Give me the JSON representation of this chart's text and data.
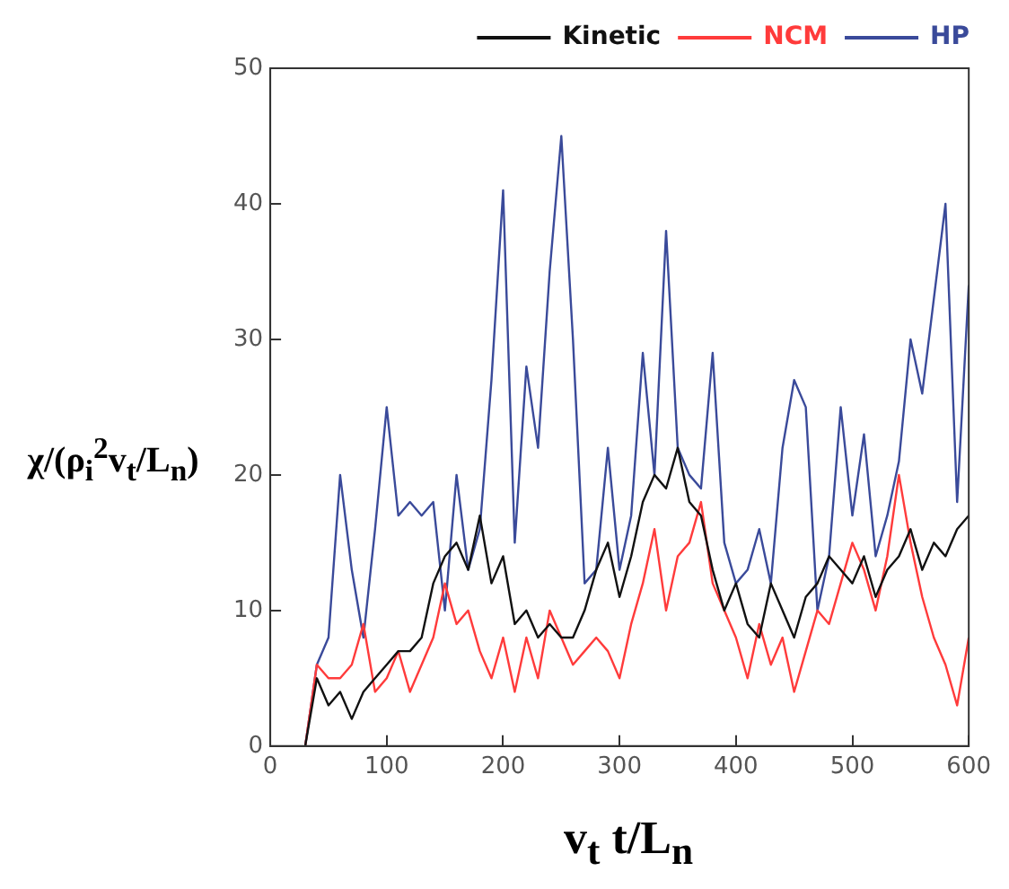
{
  "chart_data": {
    "type": "line",
    "xlabel": "v$_{t}$ t/L$_{n}$",
    "ylabel": "χ/(ρ$_{i}$$^{2}$v$_{t}$/L$_{n}$)",
    "x": [
      30,
      40,
      50,
      60,
      70,
      80,
      90,
      100,
      110,
      120,
      130,
      140,
      150,
      160,
      170,
      180,
      190,
      200,
      210,
      220,
      230,
      240,
      250,
      260,
      270,
      280,
      290,
      300,
      310,
      320,
      330,
      340,
      350,
      360,
      370,
      380,
      390,
      400,
      410,
      420,
      430,
      440,
      450,
      460,
      470,
      480,
      490,
      500,
      510,
      520,
      530,
      540,
      550,
      560,
      570,
      580,
      590,
      600
    ],
    "series": [
      {
        "name": "Kinetic",
        "color": "#111111",
        "values": [
          0,
          5,
          3,
          4,
          2,
          4,
          5,
          6,
          7,
          7,
          8,
          12,
          14,
          15,
          13,
          17,
          12,
          14,
          9,
          10,
          8,
          9,
          8,
          8,
          10,
          13,
          15,
          11,
          14,
          18,
          20,
          19,
          22,
          18,
          17,
          13,
          10,
          12,
          9,
          8,
          12,
          10,
          8,
          11,
          12,
          14,
          13,
          12,
          14,
          11,
          13,
          14,
          16,
          13,
          15,
          14,
          16,
          17
        ]
      },
      {
        "name": "NCM",
        "color": "#ff3b3b",
        "values": [
          0,
          6,
          5,
          5,
          6,
          9,
          4,
          5,
          7,
          4,
          6,
          8,
          12,
          9,
          10,
          7,
          5,
          8,
          4,
          8,
          5,
          10,
          8,
          6,
          7,
          8,
          7,
          5,
          9,
          12,
          16,
          10,
          14,
          15,
          18,
          12,
          10,
          8,
          5,
          9,
          6,
          8,
          4,
          7,
          10,
          9,
          12,
          15,
          13,
          10,
          14,
          20,
          15,
          11,
          8,
          6,
          3,
          8
        ]
      },
      {
        "name": "HP",
        "color": "#3a4a9a",
        "values": [
          0,
          6,
          8,
          20,
          13,
          8,
          16,
          25,
          17,
          18,
          17,
          18,
          10,
          20,
          13,
          16,
          27,
          41,
          15,
          28,
          22,
          35,
          45,
          30,
          12,
          13,
          22,
          13,
          17,
          29,
          20,
          38,
          22,
          20,
          19,
          29,
          15,
          12,
          13,
          16,
          12,
          22,
          27,
          25,
          10,
          14,
          25,
          17,
          23,
          14,
          17,
          21,
          30,
          26,
          33,
          40,
          18,
          34
        ]
      }
    ],
    "xlim": [
      0,
      600
    ],
    "xticks": [
      0,
      100,
      200,
      300,
      400,
      500,
      600
    ],
    "ylim": [
      0,
      50
    ],
    "yticks": [
      0,
      10,
      20,
      30,
      40,
      50
    ],
    "legend": "top right",
    "grid": false
  }
}
